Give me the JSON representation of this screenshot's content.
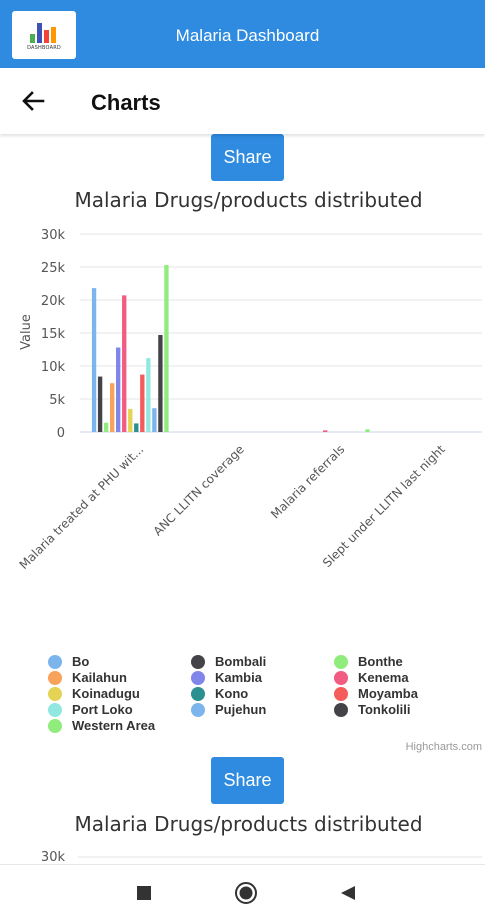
{
  "app": {
    "title": "Malaria Dashboard",
    "logo_caption": "DASHBOARD"
  },
  "page": {
    "title": "Charts",
    "back_icon": "arrow-left-icon"
  },
  "share_label": "Share",
  "colors": {
    "primary": "#2e8be0"
  },
  "chart_data": [
    {
      "type": "bar",
      "title": "Malaria Drugs/products distributed",
      "ylabel": "Value",
      "ylim": [
        0,
        30000
      ],
      "yticks": [
        "0",
        "5k",
        "10k",
        "15k",
        "20k",
        "25k",
        "30k"
      ],
      "categories": [
        "Malaria treated at PHU wit...",
        "ANC LLITN coverage",
        "Malaria referrals",
        "Slept under LLITN last night"
      ],
      "series": [
        {
          "name": "Bo",
          "color": "#7cb5ec",
          "values": [
            21800,
            0,
            0,
            0
          ]
        },
        {
          "name": "Bombali",
          "color": "#434348",
          "values": [
            8400,
            0,
            0,
            0
          ]
        },
        {
          "name": "Bonthe",
          "color": "#90ed7d",
          "values": [
            1400,
            0,
            0,
            0
          ]
        },
        {
          "name": "Kailahun",
          "color": "#f7a35c",
          "values": [
            7400,
            0,
            0,
            0
          ]
        },
        {
          "name": "Kambia",
          "color": "#8085e9",
          "values": [
            12800,
            0,
            0,
            0
          ]
        },
        {
          "name": "Kenema",
          "color": "#f15c80",
          "values": [
            20700,
            0,
            250,
            0
          ]
        },
        {
          "name": "Koinadugu",
          "color": "#e4d354",
          "values": [
            3500,
            0,
            0,
            0
          ]
        },
        {
          "name": "Kono",
          "color": "#2b908f",
          "values": [
            1300,
            0,
            0,
            0
          ]
        },
        {
          "name": "Moyamba",
          "color": "#f45b5b",
          "values": [
            8700,
            0,
            0,
            0
          ]
        },
        {
          "name": "Port Loko",
          "color": "#91e8e1",
          "values": [
            11200,
            0,
            0,
            0
          ]
        },
        {
          "name": "Pujehun",
          "color": "#7cb5ec",
          "values": [
            3600,
            0,
            0,
            0
          ]
        },
        {
          "name": "Tonkolili",
          "color": "#434348",
          "values": [
            14700,
            0,
            0,
            0
          ]
        },
        {
          "name": "Western Area",
          "color": "#90ed7d",
          "values": [
            25300,
            0,
            400,
            0
          ]
        }
      ],
      "legend": "bottom",
      "credits": "Highcharts.com"
    },
    {
      "type": "bar",
      "title": "Malaria Drugs/products distributed",
      "ylim": [
        0,
        30000
      ],
      "yticks": [
        "30k"
      ]
    }
  ],
  "navbar": {
    "icons": [
      "square-icon",
      "home-circle-icon",
      "back-triangle-icon"
    ]
  }
}
